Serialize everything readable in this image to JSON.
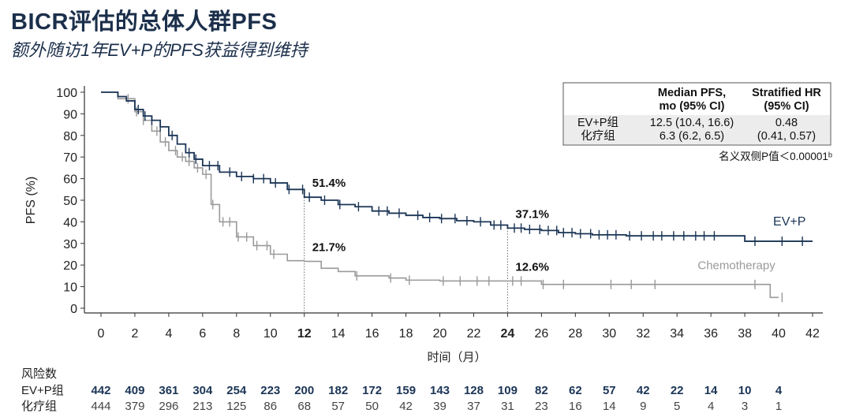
{
  "title": "BICR评估的总体人群PFS",
  "subtitle": "额外随访1年EV+P的PFS获益得到维持",
  "colors": {
    "ev": "#1b3556",
    "chemo": "#9a9a9a",
    "title": "#1b2f4b"
  },
  "chart_data": {
    "type": "line",
    "title": "BICR评估的总体人群PFS",
    "xlabel": "时间（月）",
    "ylabel": "PFS (%)",
    "xlim": [
      0,
      42
    ],
    "ylim": [
      0,
      100
    ],
    "xticks": [
      0,
      2,
      4,
      6,
      8,
      10,
      12,
      14,
      16,
      18,
      20,
      22,
      24,
      26,
      28,
      30,
      32,
      34,
      36,
      38,
      40,
      42
    ],
    "yticks": [
      0,
      10,
      20,
      30,
      40,
      50,
      60,
      70,
      80,
      90,
      100
    ],
    "highlight_x": [
      12,
      24
    ],
    "series": [
      {
        "name": "EV+P",
        "x": [
          0,
          1,
          1.5,
          2,
          2.5,
          3,
          3.5,
          4,
          4.5,
          5,
          5.5,
          6,
          7,
          8,
          9,
          10,
          11,
          12,
          13,
          14,
          15,
          16,
          17,
          18,
          19,
          20,
          21,
          22,
          23,
          24,
          25,
          26,
          27,
          28,
          29,
          30,
          31,
          32,
          33,
          34,
          35,
          36,
          38,
          39,
          40,
          41,
          42
        ],
        "y": [
          100,
          98,
          96,
          92,
          89,
          87,
          84,
          80,
          76,
          72,
          69,
          66,
          63,
          61,
          60,
          58,
          55,
          51.4,
          50,
          48,
          47,
          45,
          44,
          43,
          42,
          41.5,
          40.5,
          40,
          38.5,
          37.1,
          36.5,
          36,
          35,
          34.5,
          34,
          34,
          33.5,
          33.5,
          33.5,
          33.5,
          33.5,
          33.5,
          31,
          31,
          31,
          31,
          31
        ],
        "censor_x": [
          2.2,
          2.6,
          3,
          3.5,
          4.2,
          5.2,
          5.6,
          6.4,
          6.9,
          7.6,
          8.3,
          9,
          9.6,
          10.3,
          11.1,
          11.9,
          12.3,
          13.2,
          14.1,
          15.2,
          16.4,
          16.9,
          17.6,
          18.7,
          19.4,
          20.1,
          20.9,
          21.6,
          22.4,
          23.2,
          23.6,
          24.4,
          24.8,
          25.3,
          25.9,
          26.4,
          26.9,
          27.3,
          27.8,
          28.3,
          28.9,
          29.4,
          29.9,
          30.4,
          31.2,
          31.9,
          32.6,
          33.1,
          33.8,
          34.4,
          35.1,
          35.6,
          36.2,
          38.6,
          40.2,
          41.4
        ]
      },
      {
        "name": "Chemotherapy",
        "x": [
          0,
          1,
          2,
          2.5,
          3,
          3.5,
          4,
          4.5,
          5,
          5.5,
          6,
          6.5,
          7,
          8,
          9,
          10,
          11,
          12,
          13,
          14,
          15,
          16,
          17,
          18,
          20,
          22,
          24,
          26,
          28,
          30,
          32,
          34,
          36,
          38,
          39,
          39.5,
          40
        ],
        "y": [
          100,
          97,
          91,
          87,
          82,
          77,
          73,
          70,
          68,
          65,
          62,
          48,
          40,
          33,
          29,
          25,
          22,
          21.7,
          18.5,
          17,
          15,
          15,
          14,
          13,
          12.6,
          12.6,
          12.6,
          11,
          11,
          11,
          11,
          11,
          11,
          11,
          11,
          5,
          5
        ],
        "censor_x": [
          1.6,
          2.1,
          2.5,
          3.3,
          3.8,
          4.4,
          4.8,
          5.2,
          5.7,
          6.2,
          6.6,
          7.2,
          7.6,
          8.1,
          8.6,
          9.2,
          9.8,
          10.2,
          15.1,
          17.1,
          18.2,
          20.2,
          21.2,
          22.2,
          22.9,
          24.3,
          24.8,
          26.1,
          27.3,
          30.1,
          31.3,
          32.7,
          38.6,
          40.2
        ]
      }
    ],
    "annotations": [
      {
        "x": 12,
        "y": 51.4,
        "text": "51.4%"
      },
      {
        "x": 24,
        "y": 37.1,
        "text": "37.1%"
      },
      {
        "x": 12,
        "y": 21.7,
        "text": "21.7%"
      },
      {
        "x": 24,
        "y": 12.6,
        "text": "12.6%"
      }
    ],
    "series_labels": {
      "ev": "EV+P",
      "chemo": "Chemotherapy"
    },
    "inset_table": {
      "headers": [
        "",
        "Median PFS,\nmo (95% CI)",
        "Stratified HR\n(95% CI)"
      ],
      "rows": [
        [
          "EV+P组",
          "12.5 (10.4, 16.6)",
          "0.48"
        ],
        [
          "化疗组",
          "6.3 (6.2, 6.5)",
          "(0.41, 0.57)"
        ]
      ],
      "footnote": "名义双侧P值＜0.00001ᵇ"
    },
    "risk_table": {
      "title": "风险数",
      "times": [
        0,
        2,
        4,
        6,
        8,
        10,
        12,
        14,
        16,
        18,
        20,
        22,
        24,
        26,
        28,
        30,
        32,
        34,
        36,
        38,
        40
      ],
      "rows": [
        {
          "label": "EV+P组",
          "values": [
            442,
            409,
            361,
            304,
            254,
            223,
            200,
            182,
            172,
            159,
            143,
            128,
            109,
            82,
            62,
            57,
            42,
            22,
            14,
            10,
            4
          ]
        },
        {
          "label": "化疗组",
          "values": [
            444,
            379,
            296,
            213,
            125,
            86,
            68,
            57,
            50,
            42,
            39,
            37,
            31,
            23,
            16,
            14,
            9,
            5,
            4,
            3,
            1
          ]
        }
      ]
    }
  }
}
